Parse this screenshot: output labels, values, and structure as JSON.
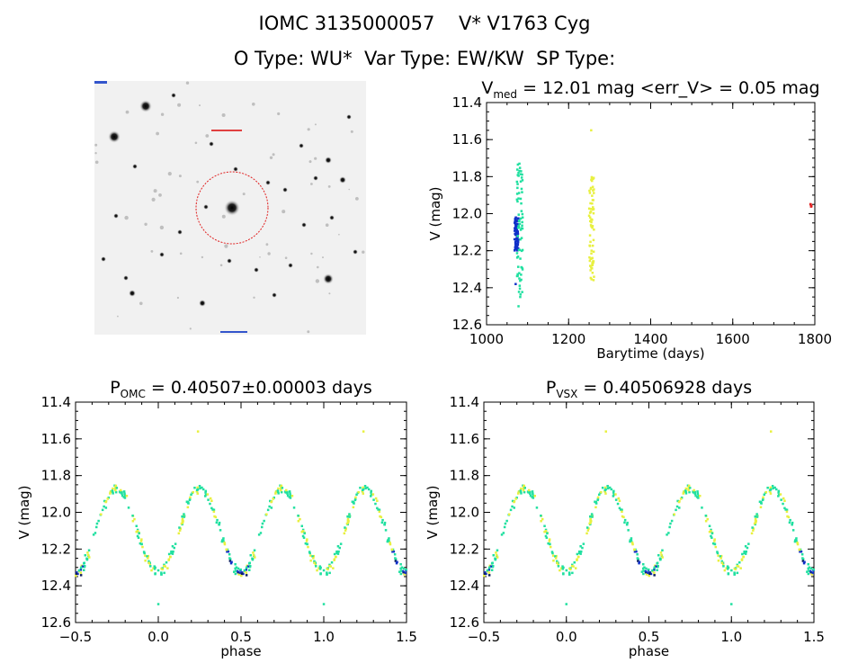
{
  "header": {
    "line1": "IOMC 3135000057    V* V1763 Cyg",
    "line2": "O Type: WU*  Var Type: EW/KW  SP Type:"
  },
  "colors": {
    "blue": "#1030c8",
    "dark_navy": "#102060",
    "cyan_green": "#20e0a0",
    "yellow": "#e8f040",
    "red": "#e02020",
    "aperture_circle": "#e02020"
  },
  "chart_data": [
    {
      "type": "scatter",
      "title": "V_med = 12.01 mag <err_V> = 0.05 mag",
      "title_parts": {
        "main": "V",
        "sub": "med",
        "rest": " = 12.01 mag <err_V> = 0.05 mag"
      },
      "xlabel": "Barytime (days)",
      "ylabel": "V (mag)",
      "xlim": [
        1000,
        1800
      ],
      "ylim": [
        12.6,
        11.4
      ],
      "y_inverted": true,
      "xticks": [
        1000,
        1200,
        1400,
        1600,
        1800
      ],
      "yticks": [
        11.4,
        11.6,
        11.8,
        12.0,
        12.2,
        12.4,
        12.6
      ],
      "series": [
        {
          "color": "#1030c8",
          "x_range": [
            1068,
            1078
          ],
          "v_range": [
            12.02,
            12.2
          ],
          "points": [
            [
              1070,
              12.05
            ],
            [
              1072,
              12.1
            ],
            [
              1074,
              12.18
            ],
            [
              1071,
              12.38
            ]
          ]
        },
        {
          "color": "#20e0a0",
          "x_range": [
            1074,
            1088
          ],
          "v_range": [
            11.73,
            12.45
          ],
          "points": [
            [
              1080,
              11.73
            ],
            [
              1082,
              12.45
            ],
            [
              1078,
              12.5
            ]
          ]
        },
        {
          "color": "#e8f040",
          "x_range": [
            1250,
            1262
          ],
          "v_range": [
            11.8,
            12.36
          ],
          "points": [
            [
              1255,
              11.55
            ]
          ]
        },
        {
          "color": "#e02020",
          "x_range": [
            1788,
            1792
          ],
          "v_range": [
            11.94,
            11.97
          ],
          "points": [
            [
              1790,
              11.95
            ]
          ]
        }
      ]
    },
    {
      "type": "scatter",
      "title": "P_OMC = 0.40507±0.00003 days",
      "title_parts": {
        "main": "P",
        "sub": "OMC",
        "rest": " = 0.40507±0.00003 days"
      },
      "xlabel": "phase",
      "ylabel": "V (mag)",
      "xlim": [
        -0.5,
        1.5
      ],
      "ylim": [
        12.6,
        11.4
      ],
      "y_inverted": true,
      "xticks": [
        -0.5,
        0.0,
        0.5,
        1.0,
        1.5
      ],
      "xtick_labels": [
        "−0.5",
        "0.0",
        "0.5",
        "1.0",
        "1.5"
      ],
      "yticks": [
        11.4,
        11.6,
        11.8,
        12.0,
        12.2,
        12.4,
        12.6
      ],
      "light_curve": {
        "max_mag": 11.87,
        "primary_min_mag": 12.33,
        "secondary_min_mag": 12.33,
        "primary_min_phase": 0.0,
        "secondary_min_phase": 0.5
      },
      "outliers": [
        [
          0.24,
          11.56
        ],
        [
          1.24,
          11.56
        ],
        [
          0.0,
          12.5
        ],
        [
          1.0,
          12.5
        ]
      ]
    },
    {
      "type": "scatter",
      "title": "P_VSX = 0.40506928 days",
      "title_parts": {
        "main": "P",
        "sub": "VSX",
        "rest": " = 0.40506928 days"
      },
      "xlabel": "phase",
      "ylabel": "V (mag)",
      "xlim": [
        -0.5,
        1.5
      ],
      "ylim": [
        12.6,
        11.4
      ],
      "y_inverted": true,
      "xticks": [
        -0.5,
        0.0,
        0.5,
        1.0,
        1.5
      ],
      "xtick_labels": [
        "−0.5",
        "0.0",
        "0.5",
        "1.0",
        "1.5"
      ],
      "yticks": [
        11.4,
        11.6,
        11.8,
        12.0,
        12.2,
        12.4,
        12.6
      ],
      "light_curve": {
        "max_mag": 11.87,
        "primary_min_mag": 12.33,
        "secondary_min_mag": 12.33,
        "primary_min_phase": 0.0,
        "secondary_min_phase": 0.5
      },
      "outliers": [
        [
          0.24,
          11.56
        ],
        [
          1.24,
          11.56
        ],
        [
          0.0,
          12.5
        ],
        [
          1.0,
          12.5
        ]
      ]
    }
  ]
}
